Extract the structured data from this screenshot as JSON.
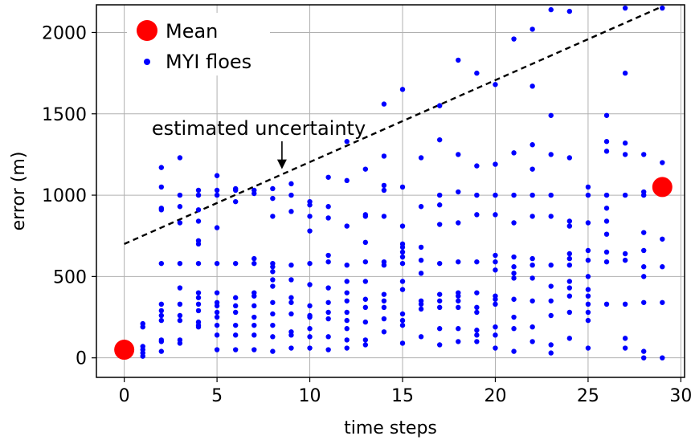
{
  "chart_data": {
    "type": "scatter",
    "title": "",
    "xlabel": "time steps",
    "ylabel": "error (m)",
    "xlim": [
      -1.5,
      30.2
    ],
    "ylim": [
      -120,
      2170
    ],
    "xticks": [
      0,
      5,
      10,
      15,
      20,
      25,
      30
    ],
    "xtick_labels": [
      "0",
      "5",
      "10",
      "15",
      "20",
      "25",
      "30"
    ],
    "yticks": [
      0,
      500,
      1000,
      1500,
      2000
    ],
    "ytick_labels": [
      "0",
      "500",
      "1000",
      "1500",
      "2000"
    ],
    "grid": true,
    "legend_position": "upper-left",
    "colors": {
      "mean": "#ff0000",
      "floes": "#0000ff",
      "line": "#000000",
      "grid": "#b0b0b0"
    },
    "legend": {
      "mean_label": "Mean",
      "floes_label": "MYI floes"
    },
    "annotation": {
      "text": "estimated uncertainty",
      "arrow_from": [
        8.5,
        1400
      ],
      "arrow_to": [
        8.5,
        1160
      ]
    },
    "uncertainty_line": {
      "x": [
        0,
        29
      ],
      "y": [
        700,
        2160
      ]
    },
    "series": [
      {
        "name": "Mean",
        "points": [
          [
            0,
            50
          ],
          [
            29,
            1050
          ]
        ]
      },
      {
        "name": "MYI floes",
        "points": [
          [
            1,
            10
          ],
          [
            1,
            30
          ],
          [
            1,
            50
          ],
          [
            1,
            70
          ],
          [
            1,
            190
          ],
          [
            1,
            210
          ],
          [
            2,
            40
          ],
          [
            2,
            100
          ],
          [
            2,
            110
          ],
          [
            2,
            230
          ],
          [
            2,
            260
          ],
          [
            2,
            290
          ],
          [
            2,
            330
          ],
          [
            2,
            580
          ],
          [
            2,
            910
          ],
          [
            2,
            920
          ],
          [
            2,
            1050
          ],
          [
            2,
            1170
          ],
          [
            3,
            90
          ],
          [
            3,
            110
          ],
          [
            3,
            230
          ],
          [
            3,
            260
          ],
          [
            3,
            330
          ],
          [
            3,
            430
          ],
          [
            3,
            580
          ],
          [
            3,
            830
          ],
          [
            3,
            930
          ],
          [
            3,
            1000
          ],
          [
            3,
            1230
          ],
          [
            4,
            190
          ],
          [
            4,
            200
          ],
          [
            4,
            220
          ],
          [
            4,
            290
          ],
          [
            4,
            330
          ],
          [
            4,
            370
          ],
          [
            4,
            400
          ],
          [
            4,
            580
          ],
          [
            4,
            700
          ],
          [
            4,
            720
          ],
          [
            4,
            840
          ],
          [
            4,
            910
          ],
          [
            4,
            1000
          ],
          [
            4,
            1030
          ],
          [
            5,
            50
          ],
          [
            5,
            140
          ],
          [
            5,
            200
          ],
          [
            5,
            250
          ],
          [
            5,
            280
          ],
          [
            5,
            320
          ],
          [
            5,
            340
          ],
          [
            5,
            400
          ],
          [
            5,
            580
          ],
          [
            5,
            800
          ],
          [
            5,
            1000
          ],
          [
            5,
            1030
          ],
          [
            5,
            1120
          ],
          [
            6,
            50
          ],
          [
            6,
            140
          ],
          [
            6,
            200
          ],
          [
            6,
            280
          ],
          [
            6,
            320
          ],
          [
            6,
            370
          ],
          [
            6,
            580
          ],
          [
            6,
            960
          ],
          [
            6,
            1030
          ],
          [
            6,
            1040
          ],
          [
            7,
            50
          ],
          [
            7,
            140
          ],
          [
            7,
            200
          ],
          [
            7,
            250
          ],
          [
            7,
            320
          ],
          [
            7,
            380
          ],
          [
            7,
            400
          ],
          [
            7,
            580
          ],
          [
            7,
            610
          ],
          [
            7,
            1010
          ],
          [
            7,
            1030
          ],
          [
            8,
            40
          ],
          [
            8,
            130
          ],
          [
            8,
            200
          ],
          [
            8,
            270
          ],
          [
            8,
            340
          ],
          [
            8,
            440
          ],
          [
            8,
            480
          ],
          [
            8,
            530
          ],
          [
            8,
            560
          ],
          [
            8,
            580
          ],
          [
            8,
            870
          ],
          [
            8,
            980
          ],
          [
            8,
            1040
          ],
          [
            9,
            60
          ],
          [
            9,
            140
          ],
          [
            9,
            160
          ],
          [
            9,
            270
          ],
          [
            9,
            340
          ],
          [
            9,
            370
          ],
          [
            9,
            480
          ],
          [
            9,
            570
          ],
          [
            9,
            900
          ],
          [
            9,
            1000
          ],
          [
            9,
            1070
          ],
          [
            10,
            60
          ],
          [
            10,
            130
          ],
          [
            10,
            180
          ],
          [
            10,
            250
          ],
          [
            10,
            260
          ],
          [
            10,
            320
          ],
          [
            10,
            450
          ],
          [
            10,
            580
          ],
          [
            10,
            780
          ],
          [
            10,
            870
          ],
          [
            10,
            940
          ],
          [
            10,
            960
          ],
          [
            11,
            50
          ],
          [
            11,
            130
          ],
          [
            11,
            240
          ],
          [
            11,
            280
          ],
          [
            11,
            340
          ],
          [
            11,
            430
          ],
          [
            11,
            590
          ],
          [
            11,
            630
          ],
          [
            11,
            860
          ],
          [
            11,
            930
          ],
          [
            11,
            1110
          ],
          [
            12,
            60
          ],
          [
            12,
            110
          ],
          [
            12,
            180
          ],
          [
            12,
            230
          ],
          [
            12,
            280
          ],
          [
            12,
            350
          ],
          [
            12,
            400
          ],
          [
            12,
            470
          ],
          [
            12,
            570
          ],
          [
            12,
            810
          ],
          [
            12,
            1090
          ],
          [
            12,
            1330
          ],
          [
            13,
            80
          ],
          [
            13,
            110
          ],
          [
            13,
            220
          ],
          [
            13,
            310
          ],
          [
            13,
            360
          ],
          [
            13,
            470
          ],
          [
            13,
            590
          ],
          [
            13,
            710
          ],
          [
            13,
            870
          ],
          [
            13,
            880
          ],
          [
            13,
            1160
          ],
          [
            14,
            160
          ],
          [
            14,
            240
          ],
          [
            14,
            310
          ],
          [
            14,
            350
          ],
          [
            14,
            390
          ],
          [
            14,
            570
          ],
          [
            14,
            590
          ],
          [
            14,
            870
          ],
          [
            14,
            1030
          ],
          [
            14,
            1060
          ],
          [
            14,
            1240
          ],
          [
            14,
            1560
          ],
          [
            15,
            90
          ],
          [
            15,
            200
          ],
          [
            15,
            230
          ],
          [
            15,
            270
          ],
          [
            15,
            420
          ],
          [
            15,
            470
          ],
          [
            15,
            580
          ],
          [
            15,
            620
          ],
          [
            15,
            650
          ],
          [
            15,
            680
          ],
          [
            15,
            700
          ],
          [
            15,
            810
          ],
          [
            15,
            1050
          ],
          [
            15,
            1650
          ],
          [
            16,
            130
          ],
          [
            16,
            300
          ],
          [
            16,
            330
          ],
          [
            16,
            350
          ],
          [
            16,
            520
          ],
          [
            16,
            600
          ],
          [
            16,
            680
          ],
          [
            16,
            930
          ],
          [
            16,
            1230
          ],
          [
            17,
            80
          ],
          [
            17,
            180
          ],
          [
            17,
            310
          ],
          [
            17,
            350
          ],
          [
            17,
            390
          ],
          [
            17,
            580
          ],
          [
            17,
            820
          ],
          [
            17,
            940
          ],
          [
            17,
            1000
          ],
          [
            17,
            1340
          ],
          [
            17,
            1550
          ],
          [
            18,
            100
          ],
          [
            18,
            180
          ],
          [
            18,
            310
          ],
          [
            18,
            350
          ],
          [
            18,
            380
          ],
          [
            18,
            400
          ],
          [
            18,
            590
          ],
          [
            18,
            830
          ],
          [
            18,
            1020
          ],
          [
            18,
            1250
          ],
          [
            18,
            1830
          ],
          [
            19,
            100
          ],
          [
            19,
            140
          ],
          [
            19,
            170
          ],
          [
            19,
            280
          ],
          [
            19,
            310
          ],
          [
            19,
            400
          ],
          [
            19,
            590
          ],
          [
            19,
            880
          ],
          [
            19,
            1000
          ],
          [
            19,
            1180
          ],
          [
            19,
            1750
          ],
          [
            20,
            60
          ],
          [
            20,
            140
          ],
          [
            20,
            190
          ],
          [
            20,
            330
          ],
          [
            20,
            360
          ],
          [
            20,
            380
          ],
          [
            20,
            540
          ],
          [
            20,
            590
          ],
          [
            20,
            630
          ],
          [
            20,
            880
          ],
          [
            20,
            1000
          ],
          [
            20,
            1190
          ],
          [
            20,
            1680
          ],
          [
            21,
            40
          ],
          [
            21,
            180
          ],
          [
            21,
            250
          ],
          [
            21,
            360
          ],
          [
            21,
            490
          ],
          [
            21,
            520
          ],
          [
            21,
            560
          ],
          [
            21,
            620
          ],
          [
            21,
            830
          ],
          [
            21,
            1000
          ],
          [
            21,
            1260
          ],
          [
            21,
            1960
          ],
          [
            22,
            100
          ],
          [
            22,
            190
          ],
          [
            22,
            350
          ],
          [
            22,
            490
          ],
          [
            22,
            570
          ],
          [
            22,
            610
          ],
          [
            22,
            870
          ],
          [
            22,
            1000
          ],
          [
            22,
            1160
          ],
          [
            22,
            1310
          ],
          [
            22,
            1670
          ],
          [
            22,
            2020
          ],
          [
            23,
            30
          ],
          [
            23,
            80
          ],
          [
            23,
            260
          ],
          [
            23,
            350
          ],
          [
            23,
            440
          ],
          [
            23,
            570
          ],
          [
            23,
            870
          ],
          [
            23,
            1000
          ],
          [
            23,
            1250
          ],
          [
            23,
            1490
          ],
          [
            23,
            2140
          ],
          [
            24,
            120
          ],
          [
            24,
            280
          ],
          [
            24,
            380
          ],
          [
            24,
            430
          ],
          [
            24,
            470
          ],
          [
            24,
            570
          ],
          [
            24,
            610
          ],
          [
            24,
            640
          ],
          [
            24,
            810
          ],
          [
            24,
            840
          ],
          [
            24,
            1230
          ],
          [
            24,
            2130
          ],
          [
            25,
            60
          ],
          [
            25,
            230
          ],
          [
            25,
            280
          ],
          [
            25,
            330
          ],
          [
            25,
            380
          ],
          [
            25,
            420
          ],
          [
            25,
            500
          ],
          [
            25,
            600
          ],
          [
            25,
            660
          ],
          [
            25,
            830
          ],
          [
            25,
            1000
          ],
          [
            25,
            1050
          ],
          [
            26,
            330
          ],
          [
            26,
            590
          ],
          [
            26,
            650
          ],
          [
            26,
            760
          ],
          [
            26,
            840
          ],
          [
            26,
            920
          ],
          [
            26,
            1000
          ],
          [
            26,
            1270
          ],
          [
            26,
            1330
          ],
          [
            26,
            1490
          ],
          [
            27,
            60
          ],
          [
            27,
            120
          ],
          [
            27,
            330
          ],
          [
            27,
            600
          ],
          [
            27,
            640
          ],
          [
            27,
            1000
          ],
          [
            27,
            1250
          ],
          [
            27,
            1320
          ],
          [
            27,
            1750
          ],
          [
            27,
            2150
          ],
          [
            28,
            0
          ],
          [
            28,
            40
          ],
          [
            28,
            340
          ],
          [
            28,
            500
          ],
          [
            28,
            560
          ],
          [
            28,
            660
          ],
          [
            28,
            770
          ],
          [
            28,
            1000
          ],
          [
            28,
            1020
          ],
          [
            28,
            1250
          ],
          [
            29,
            0
          ],
          [
            29,
            340
          ],
          [
            29,
            560
          ],
          [
            29,
            730
          ],
          [
            29,
            1200
          ],
          [
            29,
            2150
          ]
        ]
      }
    ]
  }
}
